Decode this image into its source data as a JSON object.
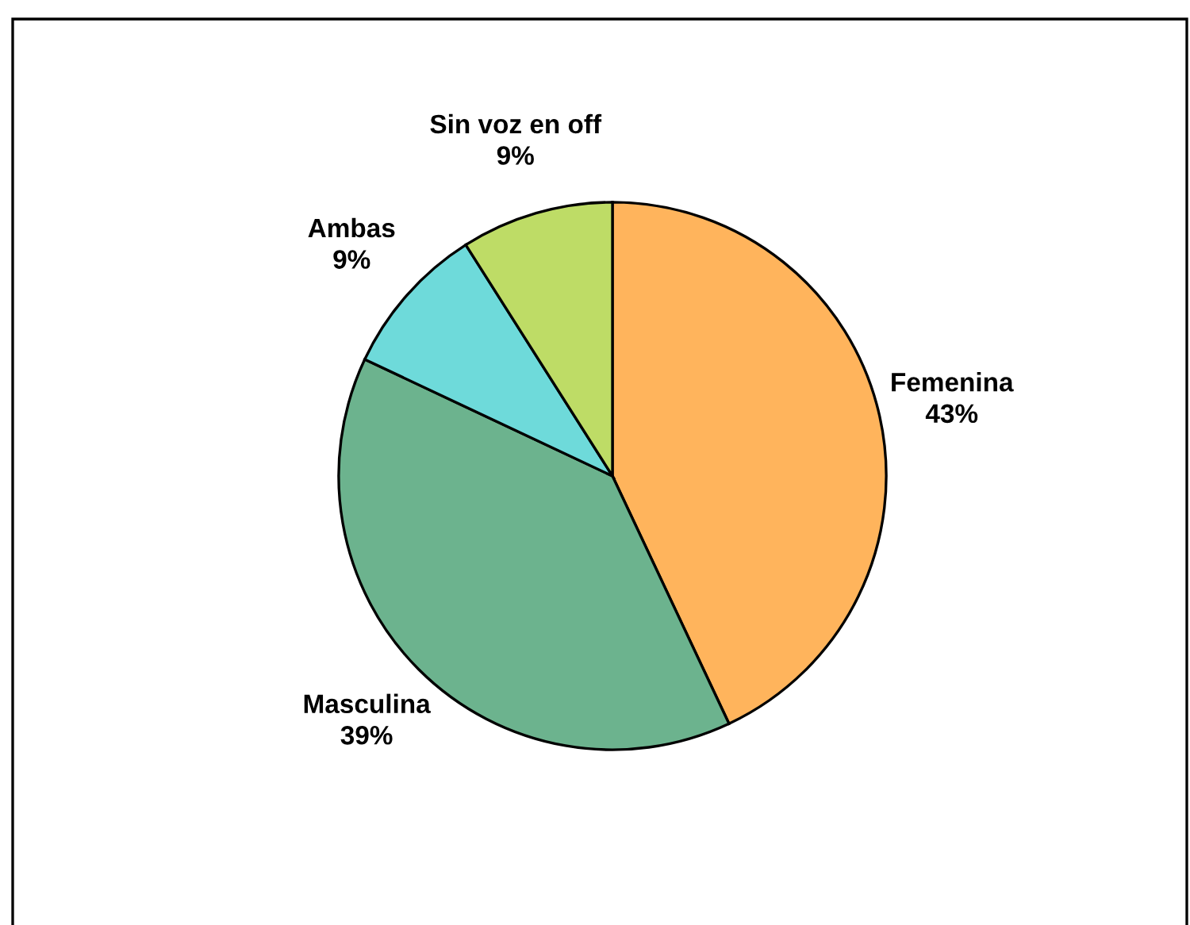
{
  "chart_data": {
    "type": "pie",
    "categories": [
      "Femenina",
      "Masculina",
      "Ambas",
      "Sin voz en off"
    ],
    "values": [
      43,
      39,
      9,
      9
    ],
    "value_labels": [
      "43%",
      "39%",
      "9%",
      "9%"
    ],
    "colors": [
      "#ffb45c",
      "#6cb38e",
      "#6edada",
      "#bedc66"
    ]
  }
}
